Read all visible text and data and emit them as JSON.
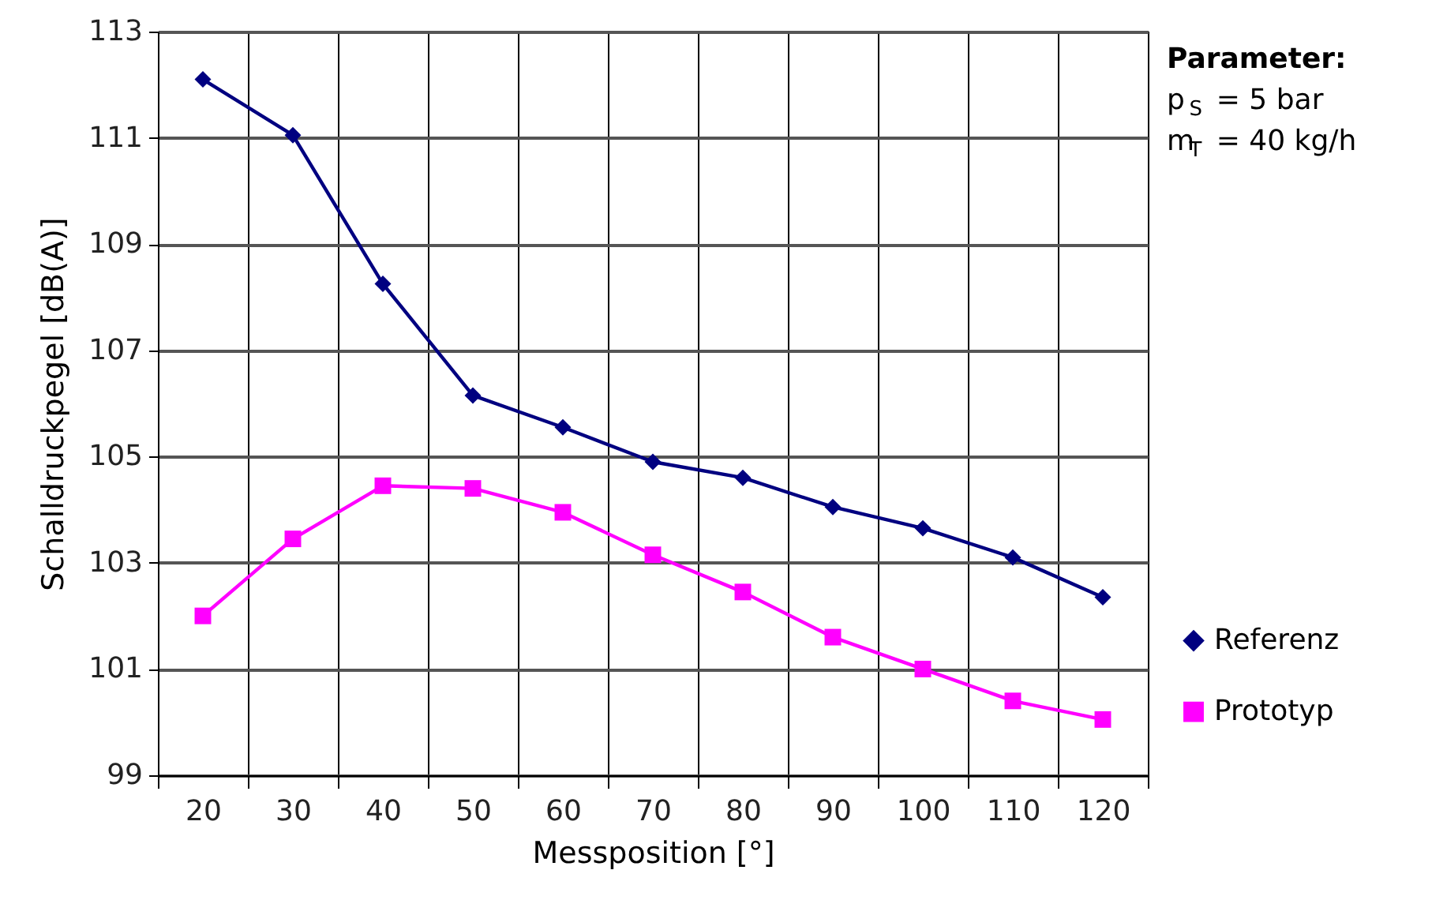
{
  "chart_data": {
    "type": "line",
    "xlabel": "Messposition [°]",
    "ylabel": "Schalldruckpegel [dB(A)]",
    "categories": [
      "20",
      "30",
      "40",
      "50",
      "60",
      "70",
      "80",
      "90",
      "100",
      "110",
      "120"
    ],
    "series": [
      {
        "name": "Referenz",
        "color": "#000080",
        "marker": "diamond",
        "values": [
          112.1,
          111.05,
          108.25,
          106.15,
          105.55,
          104.9,
          104.6,
          104.05,
          103.65,
          103.1,
          102.35
        ]
      },
      {
        "name": "Prototyp",
        "color": "#ff00ff",
        "marker": "square",
        "values": [
          102.0,
          103.45,
          104.45,
          104.4,
          103.95,
          103.15,
          102.45,
          101.6,
          101.0,
          100.4,
          100.05
        ]
      }
    ],
    "ylim": [
      99,
      113
    ],
    "yticks": [
      99,
      101,
      103,
      105,
      107,
      109,
      111,
      113
    ],
    "grid": true,
    "legend": "right",
    "line_style": "solid",
    "annotations": [
      "Parameter:",
      "p$_{S}$ = 5 bar",
      "m$_{T}$ = 40 kg/h"
    ]
  }
}
